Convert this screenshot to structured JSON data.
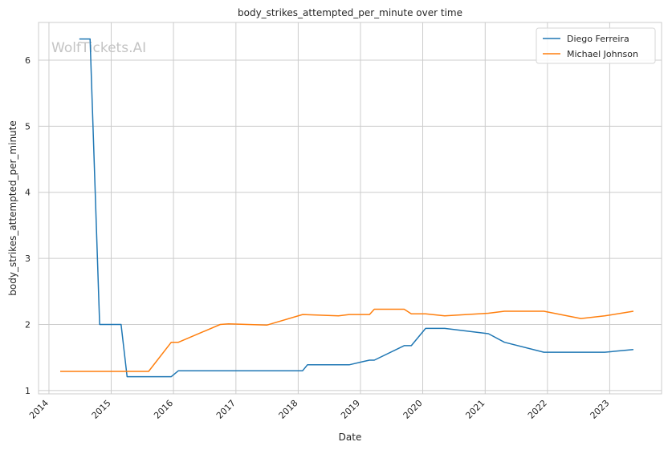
{
  "chart_data": {
    "type": "line",
    "title": "body_strikes_attempted_per_minute over time",
    "xlabel": "Date",
    "ylabel": "body_strikes_attempted_per_minute",
    "watermark": "WolfTickets.AI",
    "x_ticks": [
      "2014",
      "2015",
      "2016",
      "2017",
      "2018",
      "2019",
      "2020",
      "2021",
      "2022",
      "2023"
    ],
    "y_ticks": [
      "1",
      "2",
      "3",
      "4",
      "5",
      "6"
    ],
    "xlim": [
      "2013-11-01",
      "2023-11-01"
    ],
    "ylim": [
      0.95,
      6.57
    ],
    "grid": true,
    "legend_position": "top-right",
    "series": [
      {
        "name": "Diego Ferreira",
        "color": "#1f77b4",
        "points": [
          [
            "2014-06-28",
            6.32
          ],
          [
            "2014-08-30",
            6.32
          ],
          [
            "2014-10-25",
            2.0
          ],
          [
            "2015-02-28",
            2.0
          ],
          [
            "2015-04-04",
            1.21
          ],
          [
            "2015-12-19",
            1.21
          ],
          [
            "2016-01-30",
            1.3
          ],
          [
            "2018-01-27",
            1.3
          ],
          [
            "2018-02-24",
            1.39
          ],
          [
            "2018-10-27",
            1.39
          ],
          [
            "2019-01-19",
            1.44
          ],
          [
            "2019-02-23",
            1.46
          ],
          [
            "2019-03-23",
            1.46
          ],
          [
            "2019-09-14",
            1.68
          ],
          [
            "2019-10-26",
            1.68
          ],
          [
            "2020-01-18",
            1.94
          ],
          [
            "2020-05-09",
            1.94
          ],
          [
            "2021-01-20",
            1.86
          ],
          [
            "2021-04-24",
            1.73
          ],
          [
            "2021-12-11",
            1.58
          ],
          [
            "2022-12-03",
            1.58
          ],
          [
            "2023-05-20",
            1.62
          ]
        ]
      },
      {
        "name": "Michael Johnson",
        "color": "#ff7f0e",
        "points": [
          [
            "2014-03-08",
            1.29
          ],
          [
            "2015-08-08",
            1.29
          ],
          [
            "2015-12-19",
            1.73
          ],
          [
            "2016-01-30",
            1.73
          ],
          [
            "2016-10-01",
            2.0
          ],
          [
            "2016-11-19",
            2.01
          ],
          [
            "2017-07-01",
            1.99
          ],
          [
            "2018-01-27",
            2.15
          ],
          [
            "2018-08-25",
            2.13
          ],
          [
            "2018-10-27",
            2.15
          ],
          [
            "2019-02-23",
            2.15
          ],
          [
            "2019-03-23",
            2.23
          ],
          [
            "2019-09-14",
            2.23
          ],
          [
            "2019-10-26",
            2.16
          ],
          [
            "2020-01-18",
            2.16
          ],
          [
            "2020-05-09",
            2.13
          ],
          [
            "2021-01-20",
            2.17
          ],
          [
            "2021-04-24",
            2.2
          ],
          [
            "2021-12-11",
            2.2
          ],
          [
            "2022-07-16",
            2.09
          ],
          [
            "2022-12-03",
            2.13
          ],
          [
            "2023-05-20",
            2.2
          ]
        ]
      }
    ]
  }
}
